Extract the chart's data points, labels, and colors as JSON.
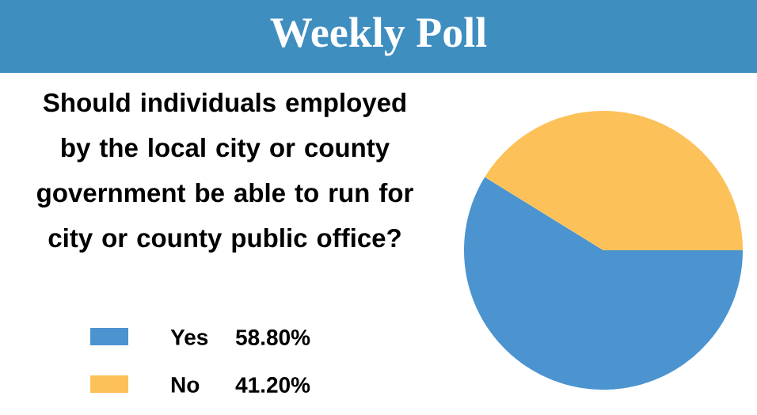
{
  "chart_data": {
    "type": "pie",
    "title": "Weekly Poll",
    "subtitle": "Should individuals employed by the local city or county government be able to run for city or county public office?",
    "categories": [
      "Yes",
      "No"
    ],
    "values": [
      58.8,
      41.2
    ],
    "value_labels": [
      "58.80%",
      "41.20%"
    ],
    "colors": [
      "#4b94d0",
      "#fcc159"
    ],
    "legend": "left"
  }
}
